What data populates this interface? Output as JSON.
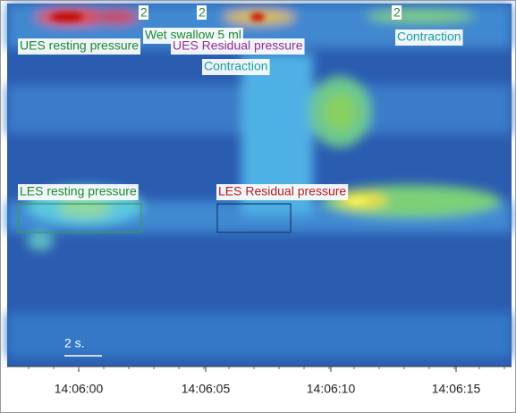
{
  "swallow_markers": [
    "2",
    "2",
    "2"
  ],
  "annotations": [
    {
      "text": "UES resting pressure"
    },
    {
      "text": "Wet swallow 5 ml"
    },
    {
      "text": "UES Residual pressure"
    },
    {
      "text": "Contraction"
    },
    {
      "text": "Contraction"
    },
    {
      "text": "LES resting pressure"
    },
    {
      "text": "LES Residual pressure"
    }
  ],
  "scale_bar": "2 s.",
  "time_axis": {
    "ticks": [
      "14:06:00",
      "14:06:05",
      "14:06:10",
      "14:06:15"
    ]
  }
}
